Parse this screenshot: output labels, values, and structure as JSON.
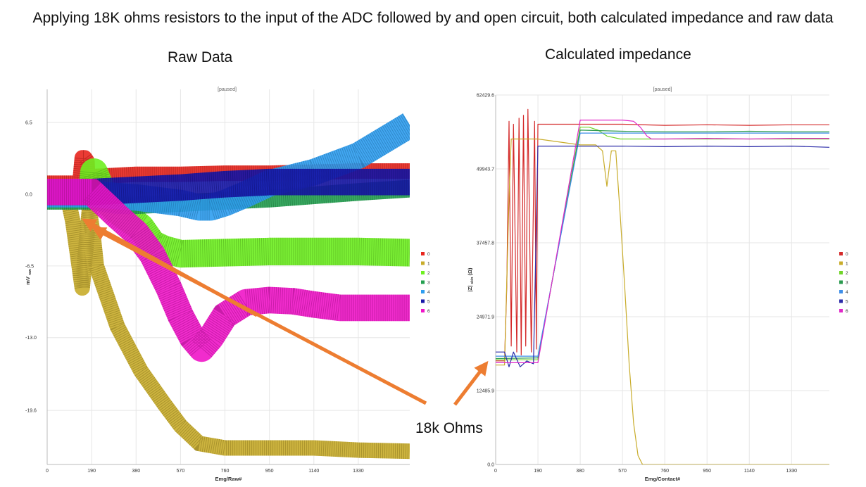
{
  "title": "Applying 18K ohms resistors to the input of the ADC followed by and open circuit, both calculated impedance and raw data",
  "annotation": "18k Ohms",
  "colors": {
    "arrow": "#ed7d31",
    "grid": "#e6e6e6",
    "axis": "#bbbbbb",
    "text": "#333333"
  },
  "chart_data": [
    {
      "type": "line",
      "panel_title": "Raw Data",
      "status": "[paused]",
      "xlabel": "Emg/Raw#",
      "ylabel": "mV",
      "ylabel_sub": "raw",
      "xlim": [
        0,
        1550
      ],
      "ylim": [
        -24.5,
        9.5
      ],
      "xticks": [
        0,
        190,
        380,
        570,
        760,
        950,
        1140,
        1330
      ],
      "yticks": [
        6.5,
        0.0,
        -6.5,
        -13.0,
        -19.6
      ],
      "ytick_labels": [
        "6.5",
        "0.0",
        "-6.5",
        "-13.0",
        "-19.6"
      ],
      "series": [
        {
          "name": "0",
          "color": "#e8261e",
          "x": [
            0,
            90,
            140,
            150,
            160,
            170,
            175,
            180,
            190,
            200,
            380,
            570,
            760,
            950,
            1140,
            1330,
            1550
          ],
          "y": [
            1.0,
            1.0,
            1.0,
            3.3,
            3.3,
            3.0,
            1.0,
            1.0,
            1.2,
            1.6,
            1.8,
            1.8,
            1.9,
            1.9,
            2.0,
            2.1,
            2.1
          ],
          "band": 1.4
        },
        {
          "name": "1",
          "color": "#c8ac2a",
          "x": [
            0,
            70,
            90,
            110,
            130,
            150,
            180,
            195,
            210,
            300,
            400,
            500,
            570,
            650,
            760,
            950,
            1140,
            1330,
            1550
          ],
          "y": [
            0.0,
            0.0,
            -0.5,
            -2.5,
            -5.5,
            -8.5,
            -1.5,
            -3.5,
            -6.5,
            -12.0,
            -16.0,
            -19.0,
            -21.0,
            -22.6,
            -23.0,
            -23.0,
            -23.0,
            -23.2,
            -23.3
          ],
          "band": 1.4
        },
        {
          "name": "2",
          "color": "#6ef020",
          "x": [
            0,
            190,
            200,
            250,
            300,
            400,
            450,
            500,
            570,
            760,
            950,
            1140,
            1330,
            1550
          ],
          "y": [
            0.0,
            0.0,
            2.0,
            -0.5,
            -1.5,
            -3.0,
            -4.5,
            -5.0,
            -5.4,
            -5.3,
            -5.2,
            -5.2,
            -5.2,
            -5.3
          ],
          "band": 2.5
        },
        {
          "name": "3",
          "color": "#24a050",
          "x": [
            0,
            190,
            300,
            380,
            570,
            760,
            950,
            1140,
            1330,
            1550
          ],
          "y": [
            -0.6,
            -0.6,
            -1.0,
            -1.0,
            -0.8,
            -0.6,
            -0.4,
            -0.1,
            0.2,
            0.5
          ],
          "band": 1.6
        },
        {
          "name": "4",
          "color": "#2e9df0",
          "x": [
            0,
            190,
            380,
            570,
            650,
            700,
            760,
            850,
            950,
            1140,
            1330,
            1550
          ],
          "y": [
            0.0,
            0.0,
            -0.3,
            -0.8,
            -1.2,
            -1.2,
            -0.8,
            0.0,
            1.0,
            2.0,
            3.5,
            6.3
          ],
          "band": 2.4
        },
        {
          "name": "5",
          "color": "#1616a8",
          "x": [
            0,
            190,
            380,
            570,
            760,
            950,
            1140,
            1330,
            1550
          ],
          "y": [
            0.2,
            0.2,
            0.4,
            0.6,
            0.9,
            1.1,
            1.1,
            1.1,
            1.1
          ],
          "band": 2.4
        },
        {
          "name": "6",
          "color": "#f015c8",
          "x": [
            0,
            190,
            250,
            300,
            380,
            450,
            520,
            570,
            620,
            660,
            700,
            760,
            850,
            950,
            1050,
            1140,
            1250,
            1330,
            1550
          ],
          "y": [
            0.2,
            0.2,
            -1.0,
            -2.0,
            -3.5,
            -5.5,
            -8.5,
            -11.0,
            -13.0,
            -14.0,
            -13.0,
            -11.0,
            -9.8,
            -9.6,
            -9.7,
            -10.0,
            -10.3,
            -10.3,
            -10.3
          ],
          "band": 2.4
        }
      ]
    },
    {
      "type": "line",
      "panel_title": "Calculated impedance",
      "status": "[paused]",
      "xlabel": "Emg/Contact#",
      "ylabel": "|Z|",
      "ylabel_sub": "skin",
      "ylabel_unit": "(Ω)",
      "xlim": [
        0,
        1500
      ],
      "ylim": [
        0,
        62429.6
      ],
      "xticks": [
        0,
        190,
        380,
        570,
        760,
        950,
        1140,
        1330
      ],
      "yticks": [
        0.0,
        12485.9,
        24971.9,
        37457.8,
        49943.7,
        62429.6
      ],
      "ytick_labels": [
        "0.0",
        "12485.9",
        "24971.9",
        "37457.8",
        "49943.7",
        "62429.6"
      ],
      "series": [
        {
          "name": "0",
          "color": "#d42a2a",
          "x": [
            0,
            40,
            50,
            60,
            70,
            80,
            95,
            105,
            115,
            125,
            135,
            145,
            160,
            175,
            183,
            190,
            380,
            570,
            760,
            950,
            1140,
            1330,
            1500
          ],
          "y": [
            17500,
            17500,
            30000,
            58000,
            20000,
            57500,
            19000,
            58500,
            18500,
            59000,
            20000,
            60000,
            19000,
            58000,
            19500,
            57500,
            57500,
            57500,
            57300,
            57400,
            57300,
            57400,
            57400
          ]
        },
        {
          "name": "1",
          "color": "#c8ac2a",
          "x": [
            0,
            40,
            60,
            70,
            90,
            190,
            380,
            450,
            480,
            500,
            520,
            540,
            560,
            580,
            600,
            620,
            640,
            660,
            680,
            700,
            720,
            760,
            950,
            1140,
            1330,
            1500
          ],
          "y": [
            16800,
            16800,
            45000,
            55000,
            55000,
            55000,
            54000,
            54000,
            53000,
            47000,
            53000,
            53000,
            42000,
            30000,
            17000,
            7000,
            1500,
            0,
            0,
            0,
            0,
            0,
            0,
            0,
            0,
            0
          ]
        },
        {
          "name": "2",
          "color": "#70d428",
          "x": [
            0,
            40,
            190,
            380,
            420,
            460,
            500,
            560,
            760,
            950,
            1140,
            1330,
            1500
          ],
          "y": [
            17700,
            17700,
            17700,
            57000,
            57000,
            56500,
            55500,
            55000,
            55000,
            55000,
            55000,
            55000,
            55000
          ]
        },
        {
          "name": "3",
          "color": "#2a9a4e",
          "x": [
            0,
            190,
            380,
            570,
            760,
            950,
            1140,
            1330,
            1500
          ],
          "y": [
            17900,
            18000,
            56500,
            56300,
            56200,
            56200,
            56300,
            56200,
            56200
          ]
        },
        {
          "name": "4",
          "color": "#3e8ee8",
          "x": [
            0,
            190,
            380,
            570,
            760,
            950,
            1140,
            1330,
            1500
          ],
          "y": [
            18300,
            18300,
            56000,
            56000,
            56000,
            56000,
            56000,
            56000,
            56000
          ]
        },
        {
          "name": "5",
          "color": "#2b2ba8",
          "x": [
            0,
            40,
            60,
            80,
            110,
            140,
            170,
            190,
            380,
            570,
            760,
            950,
            1140,
            1330,
            1500
          ],
          "y": [
            19000,
            19000,
            16500,
            19000,
            16500,
            17500,
            17000,
            53800,
            53800,
            53800,
            53700,
            53800,
            53700,
            53800,
            53600
          ]
        },
        {
          "name": "6",
          "color": "#e028c8",
          "x": [
            0,
            190,
            380,
            570,
            620,
            650,
            680,
            700,
            760,
            950,
            1140,
            1330,
            1500
          ],
          "y": [
            17200,
            17200,
            58200,
            58200,
            58000,
            57000,
            55500,
            55000,
            55000,
            55100,
            55000,
            55100,
            55100
          ]
        }
      ]
    }
  ]
}
